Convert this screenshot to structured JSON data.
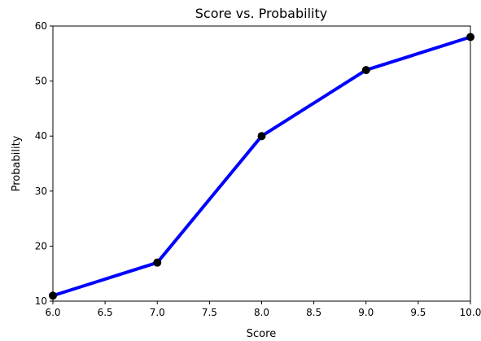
{
  "chart_data": {
    "type": "line",
    "title": "Score vs. Probability",
    "xlabel": "Score",
    "ylabel": "Probability",
    "xlim": [
      6.0,
      10.0
    ],
    "ylim": [
      10,
      60
    ],
    "xticks": [
      "6.0",
      "6.5",
      "7.0",
      "7.5",
      "8.0",
      "8.5",
      "9.0",
      "9.5",
      "10.0"
    ],
    "yticks": [
      "10",
      "20",
      "30",
      "40",
      "50",
      "60"
    ],
    "grid": false,
    "series": [
      {
        "x": [
          6,
          7,
          8,
          9,
          10
        ],
        "y": [
          11,
          17,
          40,
          52,
          58
        ],
        "color": "#0000ff",
        "marker_color": "#000000"
      }
    ]
  }
}
